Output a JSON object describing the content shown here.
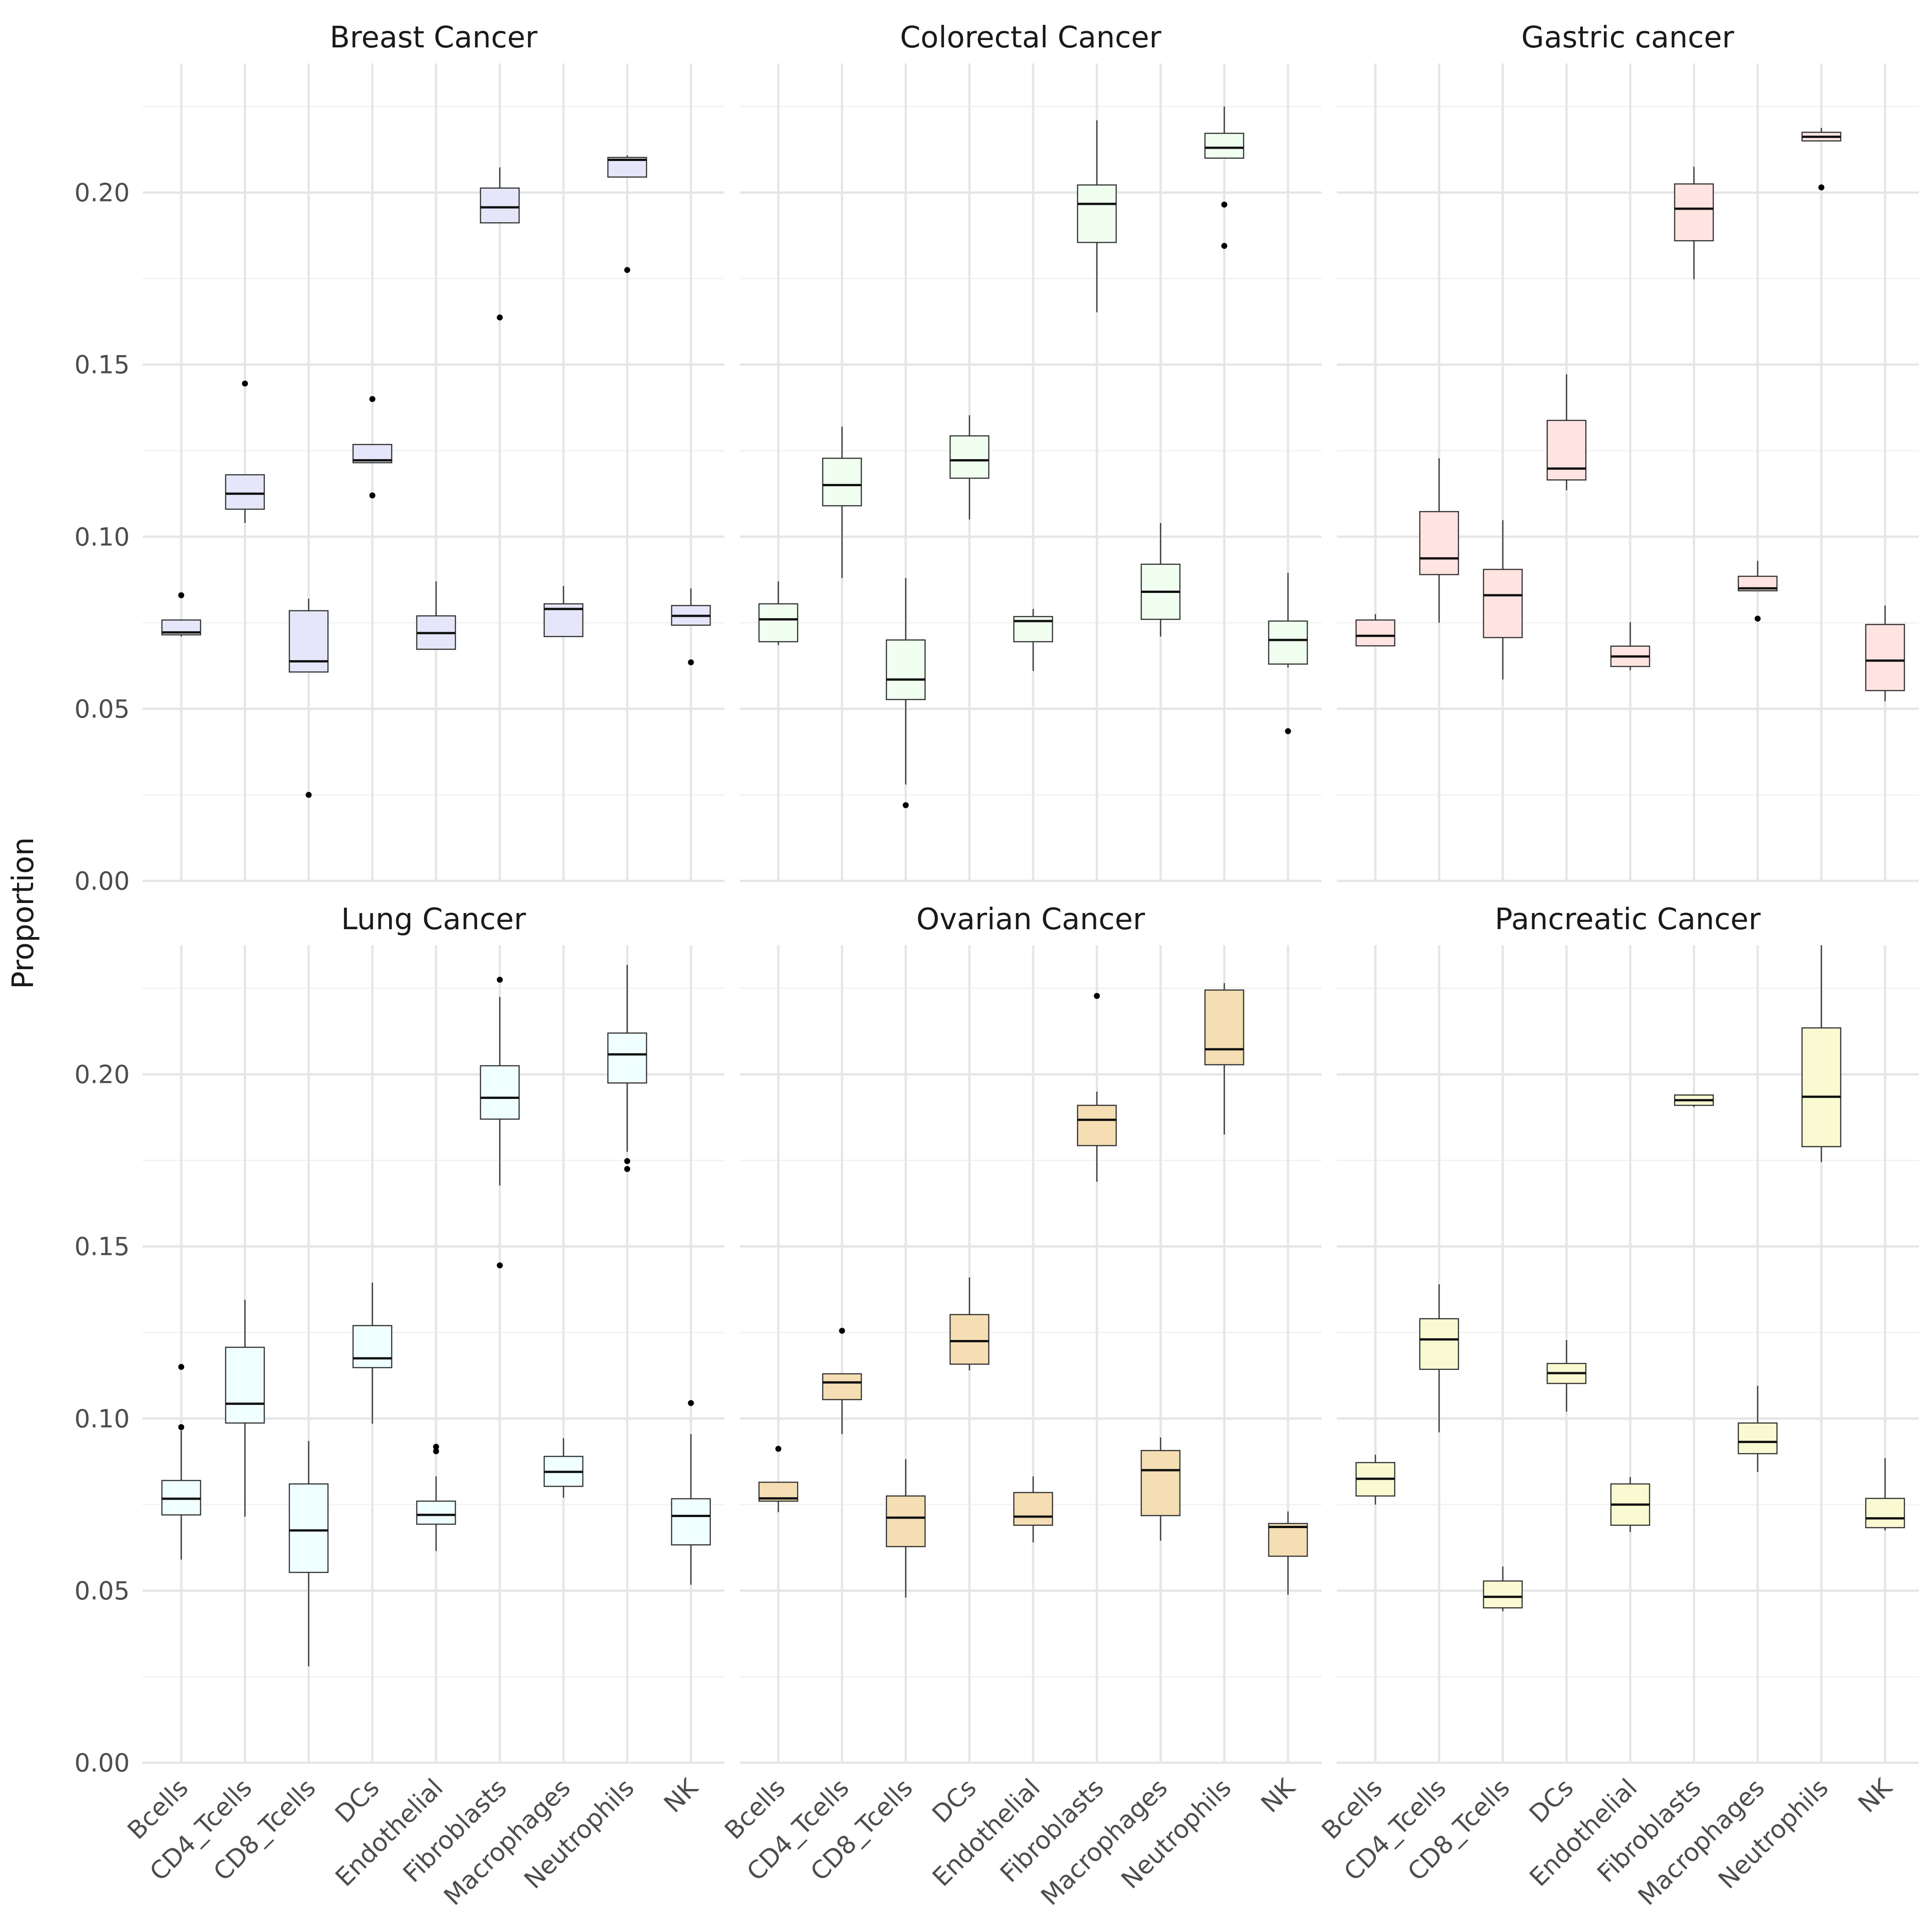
{
  "chart_data": {
    "type": "boxplot",
    "ylabel": "Proportion",
    "xlabel": "",
    "ylim": [
      0,
      0.2375
    ],
    "yticks": [
      "0.00",
      "0.05",
      "0.10",
      "0.15",
      "0.20"
    ],
    "ytick_values": [
      0,
      0.05,
      0.1,
      0.15,
      0.2
    ],
    "categories": [
      "Bcells",
      "CD4_Tcells",
      "CD8_Tcells",
      "DCs",
      "Endothelial",
      "Fibroblasts",
      "Macrophages",
      "Neutrophils",
      "NK"
    ],
    "grid": true,
    "layout": "2x3 facets, shared y axis",
    "panels": [
      {
        "title": "Breast Cancer",
        "fill": "#e6e6fa",
        "boxes": [
          {
            "q1": 0.0715,
            "median": 0.0722,
            "q3": 0.0758,
            "lower": 0.071,
            "upper": 0.0758,
            "outliers": [
              0.083
            ]
          },
          {
            "q1": 0.108,
            "median": 0.1125,
            "q3": 0.118,
            "lower": 0.104,
            "upper": 0.118,
            "outliers": [
              0.1445
            ]
          },
          {
            "q1": 0.0607,
            "median": 0.0638,
            "q3": 0.0785,
            "lower": 0.0607,
            "upper": 0.082,
            "outliers": [
              0.025
            ]
          },
          {
            "q1": 0.1215,
            "median": 0.1222,
            "q3": 0.1268,
            "lower": 0.1215,
            "upper": 0.1268,
            "outliers": [
              0.14,
              0.112
            ]
          },
          {
            "q1": 0.0673,
            "median": 0.072,
            "q3": 0.077,
            "lower": 0.0673,
            "upper": 0.087,
            "outliers": []
          },
          {
            "q1": 0.1912,
            "median": 0.1957,
            "q3": 0.2013,
            "lower": 0.1912,
            "upper": 0.2073,
            "outliers": [
              0.1637
            ]
          },
          {
            "q1": 0.071,
            "median": 0.079,
            "q3": 0.0805,
            "lower": 0.071,
            "upper": 0.0857,
            "outliers": []
          },
          {
            "q1": 0.2045,
            "median": 0.2095,
            "q3": 0.2102,
            "lower": 0.2045,
            "upper": 0.2108,
            "outliers": [
              0.1775
            ]
          },
          {
            "q1": 0.0743,
            "median": 0.077,
            "q3": 0.08,
            "lower": 0.0743,
            "upper": 0.085,
            "outliers": [
              0.0635
            ]
          }
        ]
      },
      {
        "title": "Colorectal Cancer",
        "fill": "#f0fff0",
        "boxes": [
          {
            "q1": 0.0695,
            "median": 0.076,
            "q3": 0.0805,
            "lower": 0.0685,
            "upper": 0.087,
            "outliers": []
          },
          {
            "q1": 0.109,
            "median": 0.115,
            "q3": 0.1228,
            "lower": 0.088,
            "upper": 0.132,
            "outliers": []
          },
          {
            "q1": 0.0527,
            "median": 0.0585,
            "q3": 0.07,
            "lower": 0.028,
            "upper": 0.088,
            "outliers": [
              0.022
            ]
          },
          {
            "q1": 0.117,
            "median": 0.1222,
            "q3": 0.1293,
            "lower": 0.105,
            "upper": 0.1353,
            "outliers": []
          },
          {
            "q1": 0.0695,
            "median": 0.0755,
            "q3": 0.0768,
            "lower": 0.061,
            "upper": 0.079,
            "outliers": []
          },
          {
            "q1": 0.1855,
            "median": 0.1967,
            "q3": 0.2022,
            "lower": 0.1652,
            "upper": 0.221,
            "outliers": []
          },
          {
            "q1": 0.076,
            "median": 0.084,
            "q3": 0.092,
            "lower": 0.071,
            "upper": 0.104,
            "outliers": []
          },
          {
            "q1": 0.21,
            "median": 0.213,
            "q3": 0.2172,
            "lower": 0.21,
            "upper": 0.225,
            "outliers": [
              0.1965,
              0.1845
            ]
          },
          {
            "q1": 0.063,
            "median": 0.07,
            "q3": 0.0755,
            "lower": 0.062,
            "upper": 0.0895,
            "outliers": [
              0.0435
            ]
          }
        ]
      },
      {
        "title": "Gastric cancer",
        "fill": "#ffe4e1",
        "boxes": [
          {
            "q1": 0.0683,
            "median": 0.0712,
            "q3": 0.0758,
            "lower": 0.0683,
            "upper": 0.0775,
            "outliers": []
          },
          {
            "q1": 0.089,
            "median": 0.0937,
            "q3": 0.1073,
            "lower": 0.075,
            "upper": 0.1228,
            "outliers": []
          },
          {
            "q1": 0.0707,
            "median": 0.083,
            "q3": 0.0905,
            "lower": 0.0585,
            "upper": 0.1048,
            "outliers": []
          },
          {
            "q1": 0.1165,
            "median": 0.1198,
            "q3": 0.1338,
            "lower": 0.1135,
            "upper": 0.1472,
            "outliers": []
          },
          {
            "q1": 0.0623,
            "median": 0.0652,
            "q3": 0.0682,
            "lower": 0.0612,
            "upper": 0.0752,
            "outliers": []
          },
          {
            "q1": 0.186,
            "median": 0.1953,
            "q3": 0.2025,
            "lower": 0.1748,
            "upper": 0.2075,
            "outliers": []
          },
          {
            "q1": 0.0843,
            "median": 0.085,
            "q3": 0.0885,
            "lower": 0.0843,
            "upper": 0.093,
            "outliers": [
              0.0762
            ]
          },
          {
            "q1": 0.215,
            "median": 0.2162,
            "q3": 0.2175,
            "lower": 0.215,
            "upper": 0.2188,
            "outliers": [
              0.2015
            ]
          },
          {
            "q1": 0.0553,
            "median": 0.064,
            "q3": 0.0745,
            "lower": 0.0522,
            "upper": 0.08,
            "outliers": []
          }
        ]
      },
      {
        "title": "Lung Cancer",
        "fill": "#f0ffff",
        "boxes": [
          {
            "q1": 0.072,
            "median": 0.0767,
            "q3": 0.082,
            "lower": 0.059,
            "upper": 0.0965,
            "outliers": [
              0.115,
              0.0975
            ]
          },
          {
            "q1": 0.0987,
            "median": 0.1043,
            "q3": 0.1207,
            "lower": 0.0715,
            "upper": 0.1345,
            "outliers": []
          },
          {
            "q1": 0.0553,
            "median": 0.0675,
            "q3": 0.081,
            "lower": 0.028,
            "upper": 0.0935,
            "outliers": []
          },
          {
            "q1": 0.1148,
            "median": 0.1175,
            "q3": 0.127,
            "lower": 0.0985,
            "upper": 0.1395,
            "outliers": []
          },
          {
            "q1": 0.0693,
            "median": 0.072,
            "q3": 0.076,
            "lower": 0.0615,
            "upper": 0.0832,
            "outliers": [
              0.0918,
              0.0905
            ]
          },
          {
            "q1": 0.187,
            "median": 0.1932,
            "q3": 0.2025,
            "lower": 0.1677,
            "upper": 0.2225,
            "outliers": [
              0.2275,
              0.1445
            ]
          },
          {
            "q1": 0.0803,
            "median": 0.0845,
            "q3": 0.089,
            "lower": 0.077,
            "upper": 0.0943,
            "outliers": []
          },
          {
            "q1": 0.1975,
            "median": 0.2058,
            "q3": 0.212,
            "lower": 0.1775,
            "upper": 0.2318,
            "outliers": [
              0.1748,
              0.1725
            ]
          },
          {
            "q1": 0.0633,
            "median": 0.0717,
            "q3": 0.0767,
            "lower": 0.0517,
            "upper": 0.0955,
            "outliers": [
              0.1045
            ]
          }
        ]
      },
      {
        "title": "Ovarian Cancer",
        "fill": "#f5deb3",
        "boxes": [
          {
            "q1": 0.076,
            "median": 0.0768,
            "q3": 0.0815,
            "lower": 0.0728,
            "upper": 0.0815,
            "outliers": [
              0.0912
            ]
          },
          {
            "q1": 0.1055,
            "median": 0.1105,
            "q3": 0.113,
            "lower": 0.0955,
            "upper": 0.113,
            "outliers": [
              0.1255
            ]
          },
          {
            "q1": 0.0628,
            "median": 0.0712,
            "q3": 0.0775,
            "lower": 0.048,
            "upper": 0.0882,
            "outliers": []
          },
          {
            "q1": 0.1158,
            "median": 0.1225,
            "q3": 0.1302,
            "lower": 0.114,
            "upper": 0.141,
            "outliers": []
          },
          {
            "q1": 0.069,
            "median": 0.0715,
            "q3": 0.0785,
            "lower": 0.064,
            "upper": 0.0832,
            "outliers": []
          },
          {
            "q1": 0.1793,
            "median": 0.1868,
            "q3": 0.191,
            "lower": 0.1688,
            "upper": 0.195,
            "outliers": [
              0.2228
            ]
          },
          {
            "q1": 0.0718,
            "median": 0.085,
            "q3": 0.0907,
            "lower": 0.0645,
            "upper": 0.0945,
            "outliers": []
          },
          {
            "q1": 0.2028,
            "median": 0.2073,
            "q3": 0.2245,
            "lower": 0.1825,
            "upper": 0.2265,
            "outliers": []
          },
          {
            "q1": 0.06,
            "median": 0.0685,
            "q3": 0.0695,
            "lower": 0.0488,
            "upper": 0.073,
            "outliers": []
          }
        ]
      },
      {
        "title": "Pancreatic Cancer",
        "fill": "#fafad2",
        "boxes": [
          {
            "q1": 0.0775,
            "median": 0.0825,
            "q3": 0.0872,
            "lower": 0.075,
            "upper": 0.0895,
            "outliers": []
          },
          {
            "q1": 0.1143,
            "median": 0.123,
            "q3": 0.129,
            "lower": 0.096,
            "upper": 0.139,
            "outliers": []
          },
          {
            "q1": 0.045,
            "median": 0.0482,
            "q3": 0.0528,
            "lower": 0.044,
            "upper": 0.057,
            "outliers": []
          },
          {
            "q1": 0.1102,
            "median": 0.1132,
            "q3": 0.116,
            "lower": 0.102,
            "upper": 0.1228,
            "outliers": []
          },
          {
            "q1": 0.069,
            "median": 0.075,
            "q3": 0.081,
            "lower": 0.067,
            "upper": 0.083,
            "outliers": []
          },
          {
            "q1": 0.191,
            "median": 0.1925,
            "q3": 0.194,
            "lower": 0.1905,
            "upper": 0.194,
            "outliers": []
          },
          {
            "q1": 0.0898,
            "median": 0.0932,
            "q3": 0.0987,
            "lower": 0.0845,
            "upper": 0.1095,
            "outliers": []
          },
          {
            "q1": 0.179,
            "median": 0.1935,
            "q3": 0.2135,
            "lower": 0.1745,
            "upper": 0.2375,
            "outliers": []
          },
          {
            "q1": 0.0683,
            "median": 0.071,
            "q3": 0.0768,
            "lower": 0.0675,
            "upper": 0.0885,
            "outliers": []
          }
        ]
      }
    ]
  }
}
